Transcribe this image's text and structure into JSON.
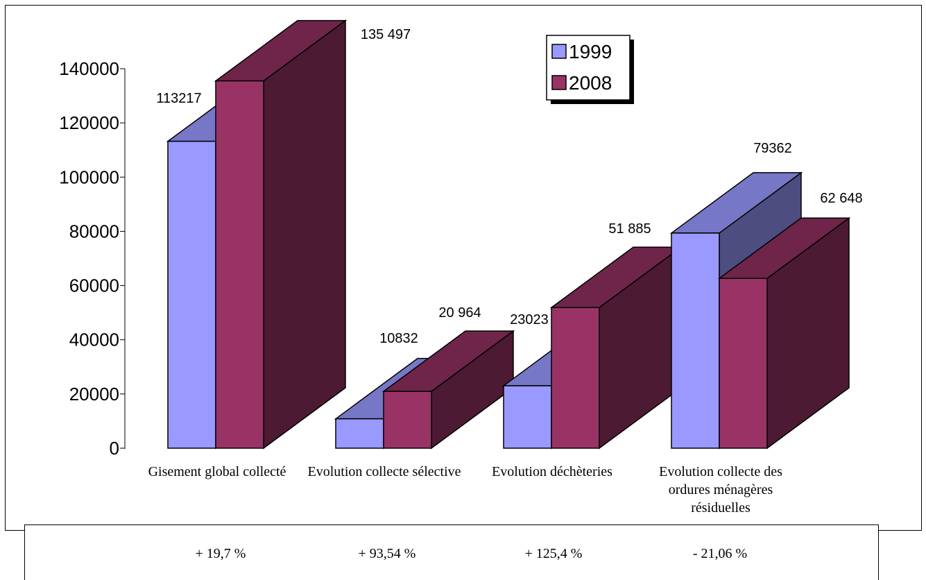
{
  "chart_data": {
    "type": "bar",
    "categories": [
      "Gisement global collecté",
      "Evolution collecte sélective",
      "Evolution déchèteries",
      "Evolution collecte des ordures ménagères résiduelles"
    ],
    "series": [
      {
        "name": "1999",
        "values": [
          113217,
          10832,
          23023,
          79362
        ],
        "labels": [
          "113217",
          "10832",
          "23023",
          "79362"
        ],
        "color": "#9999ff"
      },
      {
        "name": "2008",
        "values": [
          135497,
          20964,
          51885,
          62648
        ],
        "labels": [
          "135 497",
          "20 964",
          "51 885",
          "62 648"
        ],
        "color": "#993366"
      }
    ],
    "yticks": [
      "0",
      "20000",
      "40000",
      "60000",
      "80000",
      "100000",
      "120000",
      "140000"
    ],
    "ylim": [
      0,
      140000
    ],
    "legend_placement": "top-right",
    "style": "3d-column"
  },
  "changes": {
    "items": [
      "+ 19,7 %",
      "+ 93,54 %",
      "+ 125,4 %",
      "- 21,06 %"
    ]
  }
}
